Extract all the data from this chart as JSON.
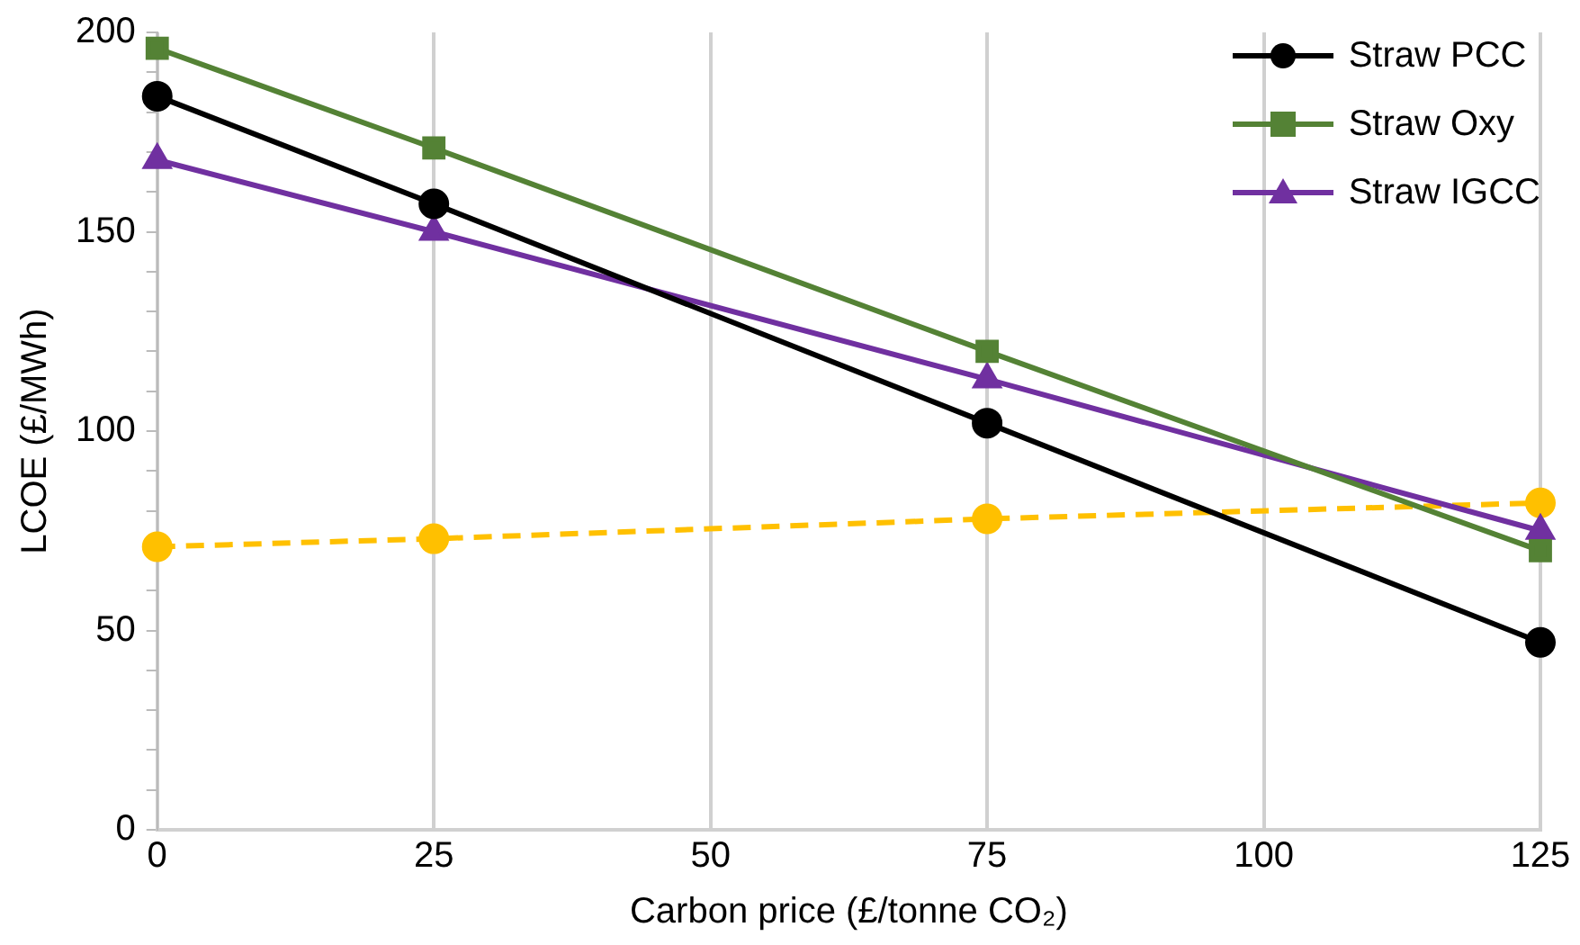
{
  "chart_data": {
    "type": "line",
    "xlabel": "Carbon price (£/tonne CO₂)",
    "ylabel": "LCOE (£/MWh)",
    "x": [
      0,
      25,
      75,
      125
    ],
    "xlim": [
      0,
      125
    ],
    "xticks": [
      0,
      25,
      50,
      75,
      100,
      125
    ],
    "ylim": [
      0,
      200
    ],
    "yticks": [
      0,
      {
        "value": 10,
        "label": null
      },
      {
        "value": 20,
        "label": null
      },
      {
        "value": 30,
        "label": null
      },
      {
        "value": 40,
        "label": null
      },
      50,
      {
        "value": 60,
        "label": null
      },
      {
        "value": 70,
        "label": null
      },
      {
        "value": 80,
        "label": null
      },
      {
        "value": 90,
        "label": null
      },
      100,
      {
        "value": 110,
        "label": null
      },
      {
        "value": 120,
        "label": null
      },
      {
        "value": 130,
        "label": null
      },
      {
        "value": 140,
        "label": null
      },
      150,
      {
        "value": 160,
        "label": null
      },
      {
        "value": 170,
        "label": null
      },
      {
        "value": 180,
        "label": null
      },
      {
        "value": 190,
        "label": null
      },
      200
    ],
    "grid": "x",
    "legend": "top right",
    "series": [
      {
        "name": "Straw PCC",
        "color": "#000000",
        "marker": "circle",
        "values": [
          184,
          157,
          102,
          47
        ]
      },
      {
        "name": "Straw Oxy",
        "color": "#548235",
        "marker": "square",
        "values": [
          196,
          171,
          120,
          70
        ]
      },
      {
        "name": "Straw IGCC",
        "color": "#7030a0",
        "marker": "triangle",
        "values": [
          168,
          150,
          113,
          75
        ]
      },
      {
        "color": "#ffc000",
        "marker": "circle",
        "line_style": "dashed",
        "values": [
          71,
          73,
          78,
          82
        ]
      }
    ]
  }
}
